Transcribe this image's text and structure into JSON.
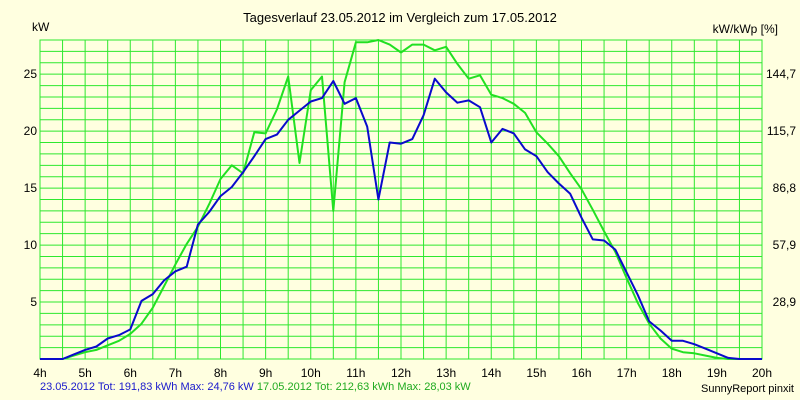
{
  "title": "Tagesverlauf 23.05.2012 im Vergleich zum 17.05.2012",
  "ylabel_left": "kW",
  "ylabel_right": "kW/kWp [%]",
  "footer": {
    "series1": "23.05.2012 Tot: 191,83 kWh Max: 24,76 kW",
    "series2": "17.05.2012 Tot: 212,63 kWh Max: 28,03 kW",
    "credit": "SunnyReport pinxit"
  },
  "colors": {
    "background": "#ffffe0",
    "grid": "#2ee82e",
    "series_23_05": "#0a0acc",
    "series_17_05": "#22e022"
  },
  "chart_data": {
    "type": "line",
    "title": "Tagesverlauf 23.05.2012 im Vergleich zum 17.05.2012",
    "xlabel": "",
    "ylabel": "kW",
    "y2label": "kW/kWp [%]",
    "xlim": [
      4,
      20
    ],
    "ylim": [
      0,
      28
    ],
    "grid": true,
    "x_ticks": [
      {
        "value": 4,
        "label": "4h"
      },
      {
        "value": 5,
        "label": "5h"
      },
      {
        "value": 6,
        "label": "6h"
      },
      {
        "value": 7,
        "label": "7h"
      },
      {
        "value": 8,
        "label": "8h"
      },
      {
        "value": 9,
        "label": "9h"
      },
      {
        "value": 10,
        "label": "10h"
      },
      {
        "value": 11,
        "label": "11h"
      },
      {
        "value": 12,
        "label": "12h"
      },
      {
        "value": 13,
        "label": "13h"
      },
      {
        "value": 14,
        "label": "14h"
      },
      {
        "value": 15,
        "label": "15h"
      },
      {
        "value": 16,
        "label": "16h"
      },
      {
        "value": 17,
        "label": "17h"
      },
      {
        "value": 18,
        "label": "18h"
      },
      {
        "value": 19,
        "label": "19h"
      },
      {
        "value": 20,
        "label": "20h"
      }
    ],
    "y_ticks": [
      {
        "value": 5,
        "label": "5"
      },
      {
        "value": 10,
        "label": "10"
      },
      {
        "value": 15,
        "label": "15"
      },
      {
        "value": 20,
        "label": "20"
      },
      {
        "value": 25,
        "label": "25"
      }
    ],
    "y2_ticks": [
      {
        "value": 5,
        "label": "28,9"
      },
      {
        "value": 10,
        "label": "57,9"
      },
      {
        "value": 15,
        "label": "86,8"
      },
      {
        "value": 20,
        "label": "115,7"
      },
      {
        "value": 25,
        "label": "144,7"
      }
    ],
    "series": [
      {
        "name": "23.05.2012",
        "color": "#0a0acc",
        "x": [
          4.0,
          4.25,
          4.5,
          4.75,
          5.0,
          5.25,
          5.5,
          5.75,
          6.0,
          6.25,
          6.5,
          6.75,
          7.0,
          7.25,
          7.5,
          7.75,
          8.0,
          8.25,
          8.5,
          8.75,
          9.0,
          9.25,
          9.5,
          9.75,
          10.0,
          10.25,
          10.5,
          10.75,
          11.0,
          11.25,
          11.5,
          11.75,
          12.0,
          12.25,
          12.5,
          12.75,
          13.0,
          13.25,
          13.5,
          13.75,
          14.0,
          14.25,
          14.5,
          14.75,
          15.0,
          15.25,
          15.5,
          15.75,
          16.0,
          16.25,
          16.5,
          16.75,
          17.0,
          17.25,
          17.5,
          17.75,
          18.0,
          18.25,
          18.5,
          18.75,
          19.0,
          19.25,
          19.5,
          19.75,
          20.0
        ],
        "values": [
          0.0,
          0.0,
          0.0,
          0.4,
          0.8,
          1.1,
          1.8,
          2.1,
          2.6,
          5.1,
          5.7,
          6.9,
          7.7,
          8.1,
          11.8,
          12.9,
          14.3,
          15.1,
          16.4,
          17.8,
          19.3,
          19.7,
          21.0,
          21.8,
          22.6,
          22.9,
          24.4,
          22.4,
          22.9,
          20.4,
          14.0,
          19.0,
          18.9,
          19.3,
          21.4,
          24.6,
          23.4,
          22.5,
          22.7,
          22.1,
          19.0,
          20.2,
          19.8,
          18.4,
          17.8,
          16.4,
          15.4,
          14.5,
          12.4,
          10.5,
          10.4,
          9.6,
          7.6,
          5.6,
          3.3,
          2.5,
          1.6,
          1.6,
          1.3,
          0.9,
          0.5,
          0.1,
          0.0,
          0.0,
          0.0
        ]
      },
      {
        "name": "17.05.2012",
        "color": "#22e022",
        "x": [
          4.0,
          4.25,
          4.5,
          4.75,
          5.0,
          5.25,
          5.5,
          5.75,
          6.0,
          6.25,
          6.5,
          6.75,
          7.0,
          7.25,
          7.5,
          7.75,
          8.0,
          8.25,
          8.5,
          8.75,
          9.0,
          9.25,
          9.5,
          9.75,
          10.0,
          10.25,
          10.5,
          10.75,
          11.0,
          11.25,
          11.5,
          11.75,
          12.0,
          12.25,
          12.5,
          12.75,
          13.0,
          13.25,
          13.5,
          13.75,
          14.0,
          14.25,
          14.5,
          14.75,
          15.0,
          15.25,
          15.5,
          15.75,
          16.0,
          16.25,
          16.5,
          16.75,
          17.0,
          17.25,
          17.5,
          17.75,
          18.0,
          18.25,
          18.5,
          18.75,
          19.0,
          19.25,
          19.5,
          19.75,
          20.0
        ],
        "values": [
          0.0,
          0.0,
          0.0,
          0.3,
          0.6,
          0.8,
          1.2,
          1.6,
          2.2,
          3.1,
          4.5,
          6.4,
          8.3,
          10.1,
          11.6,
          13.6,
          15.8,
          17.0,
          16.3,
          19.9,
          19.8,
          21.9,
          24.8,
          17.2,
          23.6,
          24.8,
          13.0,
          24.3,
          27.8,
          27.8,
          28.0,
          27.6,
          26.9,
          27.6,
          27.6,
          27.1,
          27.4,
          25.9,
          24.6,
          24.9,
          23.2,
          22.9,
          22.4,
          21.6,
          19.9,
          18.9,
          17.8,
          16.3,
          14.9,
          13.1,
          11.2,
          9.4,
          7.1,
          4.9,
          3.1,
          1.8,
          0.9,
          0.6,
          0.5,
          0.3,
          0.1,
          0.0,
          0.0,
          0.0,
          0.0
        ]
      }
    ]
  }
}
